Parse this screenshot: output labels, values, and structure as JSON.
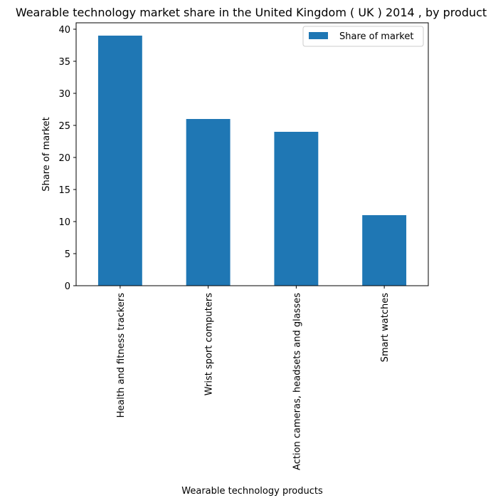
{
  "chart_data": {
    "type": "bar",
    "title": "Wearable technology market share in the United Kingdom ( UK ) 2014 , by product",
    "xlabel": "Wearable technology products",
    "ylabel": "Share of market",
    "categories": [
      "Health and fitness trackers",
      "Wrist sport computers",
      "Action cameras, headsets and glasses",
      "Smart watches"
    ],
    "series": [
      {
        "name": "Share of market",
        "values": [
          39,
          26,
          24,
          11
        ]
      }
    ],
    "ylim": [
      0,
      41
    ],
    "yticks": [
      0,
      5,
      10,
      15,
      20,
      25,
      30,
      35,
      40
    ],
    "grid": false,
    "legend_position": "top-right",
    "colors": {
      "bar": "#1f77b4",
      "axis": "#000000",
      "background": "#ffffff"
    }
  }
}
